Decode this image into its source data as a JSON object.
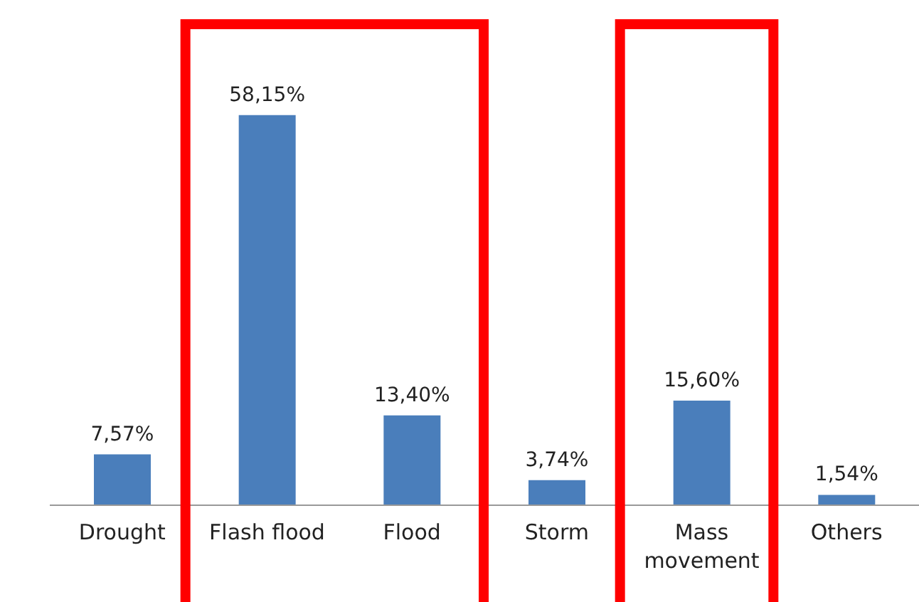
{
  "chart_data": {
    "type": "bar",
    "categories": [
      "Drought",
      "Flash flood",
      "Flood",
      "Storm",
      "Mass movement",
      "Others"
    ],
    "values": [
      7.57,
      58.15,
      13.4,
      3.74,
      15.6,
      1.54
    ],
    "value_labels": [
      "7,57%",
      "58,15%",
      "13,40%",
      "3,74%",
      "15,60%",
      "1,54%"
    ],
    "color": "#4a7ebb",
    "grid": false,
    "legend": false,
    "bands": [
      {
        "axis": "x",
        "from": "Flash flood",
        "to": "Flood",
        "color": "#ff0000"
      },
      {
        "axis": "x",
        "from": "Mass movement",
        "to": "Mass movement",
        "color": "#ff0000"
      }
    ]
  }
}
